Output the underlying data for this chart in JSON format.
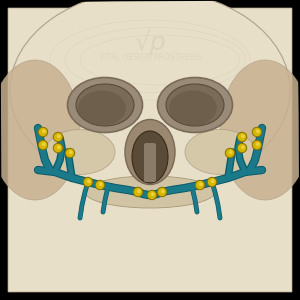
{
  "bg_color": "#000000",
  "skull_color": "#e8dfc8",
  "skull_shadow": "#c8b89a",
  "implant_color": "#1a7a8a",
  "implant_dark": "#0d5c6a",
  "screw_color": "#d4b800",
  "screw_highlight": "#f0d040",
  "eye_socket_color": "#8a7a6a",
  "nasal_color": "#6a5a4a",
  "watermark_color": "#d8cdb8",
  "watermark_text": "VITAL DESIGN PROSTHESIS",
  "logo_color": "#c8b8a0",
  "title_fontsize": 7,
  "outer_bg": "#000000",
  "skull_outline": "#b0a088"
}
